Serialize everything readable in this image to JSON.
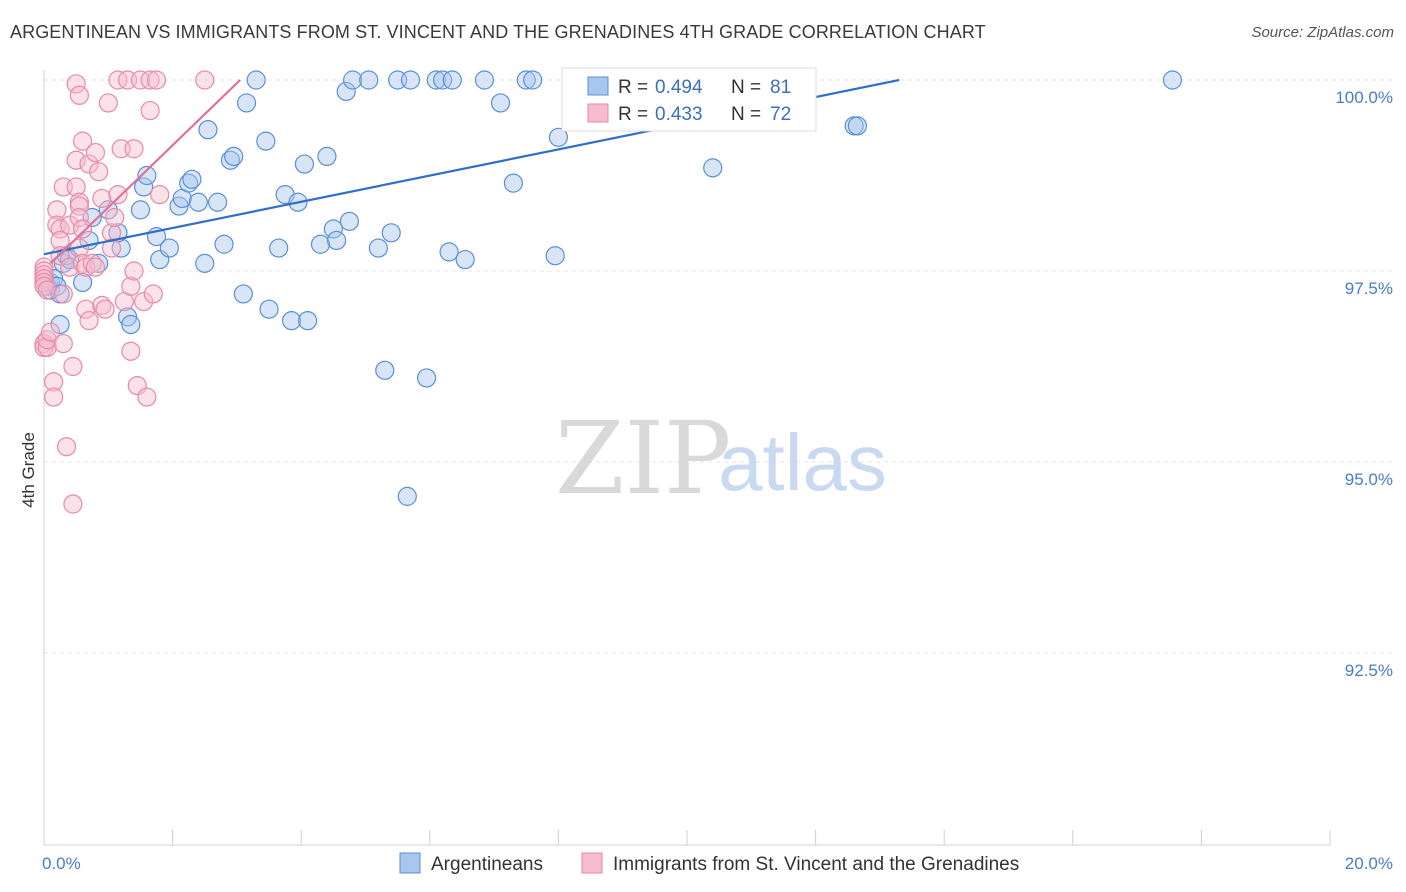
{
  "title": "ARGENTINEAN VS IMMIGRANTS FROM ST. VINCENT AND THE GRENADINES 4TH GRADE CORRELATION CHART",
  "source": "Source: ZipAtlas.com",
  "watermark": {
    "zip": "ZIP",
    "atlas": "atlas"
  },
  "colors": {
    "blue_fill": "#a9c6ee",
    "blue_stroke": "#5a8fd6",
    "blue_line": "#2f6fc9",
    "pink_fill": "#f6bccd",
    "pink_stroke": "#e68aa7",
    "pink_line": "#e0709a",
    "grid": "#e4e4e4",
    "tick_text": "#4a7cc7"
  },
  "legend": {
    "rows": [
      {
        "r_label": "R = ",
        "r_value": "0.494",
        "n_label": "N = ",
        "n_value": "81"
      },
      {
        "r_label": "R = ",
        "r_value": "0.433",
        "n_label": "N = ",
        "n_value": "72"
      }
    ]
  },
  "chart_data": {
    "type": "scatter",
    "title": "ARGENTINEAN VS IMMIGRANTS FROM ST. VINCENT AND THE GRENADINES 4TH GRADE CORRELATION CHART",
    "xlabel": "",
    "ylabel": "4th Grade",
    "xlim": [
      0,
      20
    ],
    "ylim": [
      90.0,
      100.3
    ],
    "x_tick_labels": [
      "0.0%",
      "20.0%"
    ],
    "y_ticks": [
      100.0,
      97.5,
      95.0,
      92.5
    ],
    "y_tick_labels": [
      "100.0%",
      "97.5%",
      "95.0%",
      "92.5%"
    ],
    "legend_position": "top-center",
    "series": [
      {
        "name": "Argentineans",
        "color": "#a9c6ee",
        "r": 0.494,
        "n": 81,
        "trend": {
          "x": [
            0.0,
            13.3
          ],
          "y": [
            97.72,
            100.0
          ]
        },
        "points": [
          [
            0.05,
            97.3
          ],
          [
            0.1,
            97.35
          ],
          [
            0.1,
            97.25
          ],
          [
            0.15,
            97.4
          ],
          [
            0.2,
            97.3
          ],
          [
            0.25,
            97.2
          ],
          [
            0.25,
            96.8
          ],
          [
            0.3,
            97.6
          ],
          [
            0.35,
            97.7
          ],
          [
            0.4,
            97.65
          ],
          [
            0.6,
            97.35
          ],
          [
            0.7,
            97.9
          ],
          [
            0.75,
            98.2
          ],
          [
            0.85,
            97.6
          ],
          [
            1.0,
            98.3
          ],
          [
            1.2,
            97.8
          ],
          [
            1.15,
            98.0
          ],
          [
            1.3,
            96.9
          ],
          [
            1.35,
            96.8
          ],
          [
            1.5,
            98.3
          ],
          [
            1.55,
            98.6
          ],
          [
            1.6,
            98.75
          ],
          [
            1.75,
            97.95
          ],
          [
            1.8,
            97.65
          ],
          [
            1.95,
            97.8
          ],
          [
            2.1,
            98.35
          ],
          [
            2.15,
            98.45
          ],
          [
            2.25,
            98.65
          ],
          [
            2.3,
            98.7
          ],
          [
            2.4,
            98.4
          ],
          [
            2.5,
            97.6
          ],
          [
            2.55,
            99.35
          ],
          [
            2.7,
            98.4
          ],
          [
            2.8,
            97.85
          ],
          [
            2.9,
            98.95
          ],
          [
            2.95,
            99.0
          ],
          [
            3.1,
            97.2
          ],
          [
            3.15,
            99.7
          ],
          [
            3.3,
            100.0
          ],
          [
            3.45,
            99.2
          ],
          [
            3.5,
            97.0
          ],
          [
            3.65,
            97.8
          ],
          [
            3.75,
            98.5
          ],
          [
            3.85,
            96.85
          ],
          [
            3.95,
            98.4
          ],
          [
            4.05,
            98.9
          ],
          [
            4.1,
            96.85
          ],
          [
            4.3,
            97.85
          ],
          [
            4.4,
            99.0
          ],
          [
            4.5,
            98.05
          ],
          [
            4.55,
            97.9
          ],
          [
            4.7,
            99.85
          ],
          [
            4.8,
            100.0
          ],
          [
            4.75,
            98.15
          ],
          [
            5.05,
            100.0
          ],
          [
            5.2,
            97.8
          ],
          [
            5.3,
            96.2
          ],
          [
            5.4,
            98.0
          ],
          [
            5.5,
            100.0
          ],
          [
            5.65,
            94.55
          ],
          [
            5.7,
            100.0
          ],
          [
            5.95,
            96.1
          ],
          [
            6.1,
            100.0
          ],
          [
            6.2,
            100.0
          ],
          [
            6.3,
            97.75
          ],
          [
            6.35,
            100.0
          ],
          [
            6.55,
            97.65
          ],
          [
            6.85,
            100.0
          ],
          [
            7.1,
            99.7
          ],
          [
            7.3,
            98.65
          ],
          [
            7.5,
            100.0
          ],
          [
            7.6,
            100.0
          ],
          [
            7.95,
            97.7
          ],
          [
            8.0,
            99.25
          ],
          [
            8.2,
            100.0
          ],
          [
            9.0,
            100.0
          ],
          [
            9.5,
            100.0
          ],
          [
            10.4,
            98.85
          ],
          [
            12.6,
            99.4
          ],
          [
            12.65,
            99.4
          ],
          [
            17.55,
            100.0
          ]
        ]
      },
      {
        "name": "Immigrants from St. Vincent and the Grenadines",
        "color": "#f6bccd",
        "r": 0.433,
        "n": 72,
        "trend": {
          "x": [
            0.1,
            3.05
          ],
          "y": [
            97.6,
            100.0
          ]
        },
        "points": [
          [
            0.0,
            97.55
          ],
          [
            0.0,
            97.5
          ],
          [
            0.0,
            97.45
          ],
          [
            0.0,
            97.4
          ],
          [
            0.0,
            97.35
          ],
          [
            0.0,
            97.3
          ],
          [
            0.05,
            97.25
          ],
          [
            0.0,
            96.55
          ],
          [
            0.0,
            96.5
          ],
          [
            0.05,
            96.5
          ],
          [
            0.05,
            96.6
          ],
          [
            0.1,
            96.7
          ],
          [
            0.15,
            96.05
          ],
          [
            0.15,
            95.85
          ],
          [
            0.2,
            98.3
          ],
          [
            0.2,
            98.1
          ],
          [
            0.25,
            98.05
          ],
          [
            0.25,
            97.9
          ],
          [
            0.25,
            97.7
          ],
          [
            0.3,
            98.6
          ],
          [
            0.3,
            96.55
          ],
          [
            0.3,
            97.2
          ],
          [
            0.35,
            95.2
          ],
          [
            0.4,
            98.1
          ],
          [
            0.4,
            97.55
          ],
          [
            0.45,
            94.45
          ],
          [
            0.45,
            96.25
          ],
          [
            0.5,
            99.95
          ],
          [
            0.5,
            98.95
          ],
          [
            0.5,
            98.6
          ],
          [
            0.55,
            99.8
          ],
          [
            0.55,
            98.4
          ],
          [
            0.55,
            98.35
          ],
          [
            0.55,
            98.2
          ],
          [
            0.55,
            97.8
          ],
          [
            0.6,
            99.2
          ],
          [
            0.6,
            98.05
          ],
          [
            0.6,
            97.6
          ],
          [
            0.65,
            97.55
          ],
          [
            0.65,
            97.0
          ],
          [
            0.7,
            96.85
          ],
          [
            0.7,
            98.9
          ],
          [
            0.75,
            97.6
          ],
          [
            0.8,
            97.55
          ],
          [
            0.8,
            99.05
          ],
          [
            0.85,
            98.8
          ],
          [
            0.9,
            97.05
          ],
          [
            0.9,
            98.45
          ],
          [
            0.95,
            97.0
          ],
          [
            1.0,
            99.7
          ],
          [
            1.05,
            98.0
          ],
          [
            1.05,
            97.8
          ],
          [
            1.1,
            98.2
          ],
          [
            1.15,
            100.0
          ],
          [
            1.15,
            98.5
          ],
          [
            1.2,
            99.1
          ],
          [
            1.25,
            97.1
          ],
          [
            1.3,
            100.0
          ],
          [
            1.35,
            96.45
          ],
          [
            1.35,
            97.3
          ],
          [
            1.4,
            97.5
          ],
          [
            1.4,
            99.1
          ],
          [
            1.5,
            100.0
          ],
          [
            1.45,
            96.0
          ],
          [
            1.55,
            97.1
          ],
          [
            1.6,
            95.85
          ],
          [
            1.65,
            100.0
          ],
          [
            1.65,
            99.6
          ],
          [
            1.7,
            97.2
          ],
          [
            1.75,
            100.0
          ],
          [
            1.8,
            98.5
          ],
          [
            2.5,
            100.0
          ]
        ]
      }
    ]
  },
  "bottom_legend": [
    {
      "label": "Argentineans"
    },
    {
      "label": "Immigrants from St. Vincent and the Grenadines"
    }
  ]
}
